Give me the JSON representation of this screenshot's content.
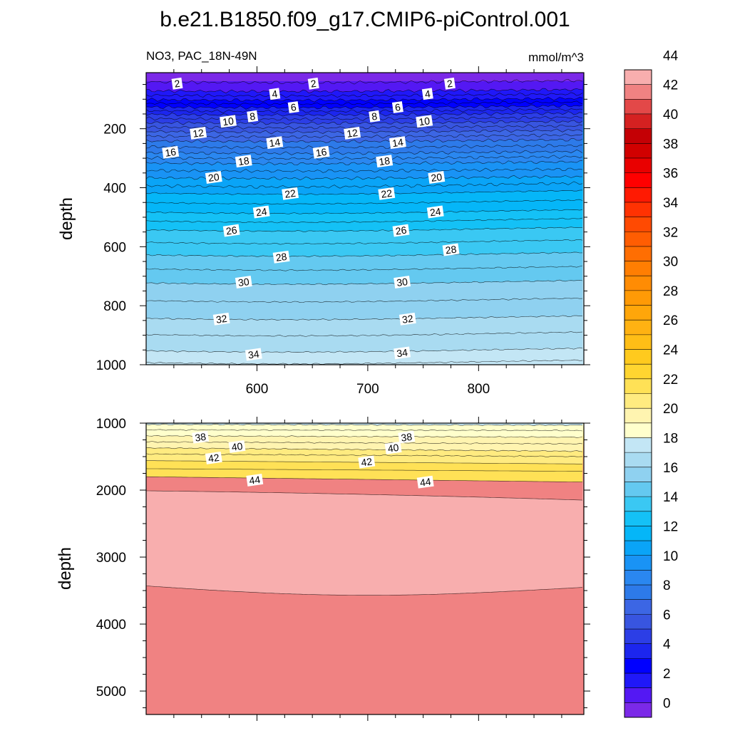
{
  "title": "b.e21.B1850.f09_g17.CMIP6-piControl.001",
  "variable_label": "NO3, PAC_18N-49N",
  "units_label": "mmol/m^3",
  "chart_data": {
    "type": "contour",
    "xlim": [
      500,
      895
    ],
    "x_ticks": [
      "600",
      "700",
      "800"
    ],
    "ylabel": "depth",
    "panels": [
      {
        "name": "upper",
        "ylim": [
          1000,
          10
        ],
        "y_ticks": [
          200,
          400,
          600,
          800,
          1000
        ],
        "contours": [
          {
            "level": 2,
            "depth": 70,
            "labels": [
              [
                528,
                47
              ],
              [
                651,
                47
              ],
              [
                774,
                47
              ]
            ]
          },
          {
            "level": 4,
            "depth": 100,
            "labels": [
              [
                616,
                82
              ],
              [
                754,
                82
              ]
            ]
          },
          {
            "level": 6,
            "depth": 125,
            "labels": [
              [
                633,
                127
              ],
              [
                727,
                127
              ]
            ]
          },
          {
            "level": 8,
            "depth": 150,
            "labels": [
              [
                596,
                158
              ],
              [
                706,
                158
              ]
            ]
          },
          {
            "level": 10,
            "depth": 178,
            "labels": [
              [
                574,
                175
              ],
              [
                751,
                175
              ]
            ]
          },
          {
            "level": 12,
            "depth": 208,
            "labels": [
              [
                547,
                215
              ],
              [
                686,
                215
              ]
            ]
          },
          {
            "level": 14,
            "depth": 240,
            "labels": [
              [
                616,
                247
              ],
              [
                727,
                247
              ]
            ]
          },
          {
            "level": 16,
            "depth": 280,
            "labels": [
              [
                522,
                280
              ],
              [
                658,
                280
              ]
            ]
          },
          {
            "level": 18,
            "depth": 315,
            "labels": [
              [
                588,
                310
              ],
              [
                715,
                310
              ]
            ]
          },
          {
            "level": 20,
            "depth": 365,
            "labels": [
              [
                561,
                365
              ],
              [
                762,
                365
              ]
            ]
          },
          {
            "level": 22,
            "depth": 415,
            "labels": [
              [
                630,
                420
              ],
              [
                717,
                420
              ]
            ]
          },
          {
            "level": 24,
            "depth": 480,
            "labels": [
              [
                604,
                482
              ],
              [
                761,
                482
              ]
            ]
          },
          {
            "level": 26,
            "depth": 540,
            "labels": [
              [
                577,
                545
              ],
              [
                730,
                545
              ]
            ]
          },
          {
            "level": 28,
            "depth": 625,
            "labels": [
              [
                622,
                635
              ],
              [
                775,
                610
              ]
            ]
          },
          {
            "level": 30,
            "depth": 720,
            "labels": [
              [
                588,
                720
              ],
              [
                731,
                720
              ]
            ]
          },
          {
            "level": 32,
            "depth": 840,
            "labels": [
              [
                568,
                845
              ],
              [
                736,
                845
              ]
            ]
          },
          {
            "level": 34,
            "depth": 950,
            "labels": [
              [
                597,
                965
              ],
              [
                731,
                960
              ]
            ]
          }
        ]
      },
      {
        "name": "lower",
        "ylim": [
          5350,
          1000
        ],
        "y_ticks": [
          1000,
          2000,
          3000,
          4000,
          5000
        ],
        "contours": [
          {
            "level": 38,
            "labels": [
              [
                549,
                1210
              ],
              [
                735,
                1210
              ]
            ]
          },
          {
            "level": 40,
            "labels": [
              [
                582,
                1350
              ],
              [
                723,
                1370
              ]
            ]
          },
          {
            "level": 42,
            "labels": [
              [
                561,
                1520
              ],
              [
                699,
                1580
              ]
            ]
          },
          {
            "level": 44,
            "labels": [
              [
                598,
                1850
              ],
              [
                752,
                1880
              ]
            ]
          }
        ]
      }
    ],
    "colorbar": {
      "levels": [
        0,
        2,
        4,
        6,
        8,
        10,
        12,
        14,
        16,
        18,
        20,
        22,
        24,
        26,
        28,
        30,
        32,
        34,
        36,
        38,
        40,
        42,
        44
      ],
      "colors": [
        "#7b29e8",
        "#5418f3",
        "#2018f8",
        "#0000ff",
        "#1c26ee",
        "#2c3ee6",
        "#3855e0",
        "#3c66e4",
        "#2d7ae9",
        "#2a87f0",
        "#1993f5",
        "#0aa4f7",
        "#05b6f8",
        "#14c1f6",
        "#3ac8f3",
        "#64c9f0",
        "#8fd1f0",
        "#a9dbf1",
        "#c3e6f5",
        "#ffffcc",
        "#fff4b0",
        "#ffeb80",
        "#ffe156",
        "#ffd530",
        "#ffca1e",
        "#ffbe16",
        "#ffb212",
        "#ffa60a",
        "#ff9a06",
        "#ff8c04",
        "#ff7e02",
        "#ff6e02",
        "#ff5d02",
        "#ff4a02",
        "#ff3202",
        "#ff1a02",
        "#ff0000",
        "#e90000",
        "#d10000",
        "#c40005",
        "#d52121",
        "#e34848",
        "#f08282",
        "#f8aeae"
      ]
    }
  }
}
